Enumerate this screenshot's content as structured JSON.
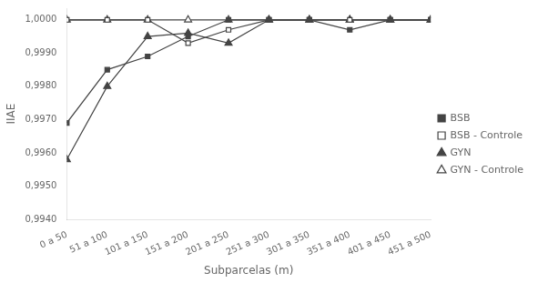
{
  "chart_data": {
    "type": "line",
    "categories": [
      "0 a 50",
      "51 a 100",
      "101 a 150",
      "151 a 200",
      "201 a 250",
      "251 a 300",
      "301 a 350",
      "351 a 400",
      "401 a 450",
      "451 a 500"
    ],
    "series": [
      {
        "name": "BSB",
        "color": "#444444",
        "marker": "square",
        "values": [
          0.9969,
          0.9985,
          0.9989,
          0.9995,
          1.0,
          1.0,
          1.0,
          0.9997,
          1.0,
          1.0
        ]
      },
      {
        "name": "BSB - Controle",
        "color": "#444444",
        "marker": "square-open",
        "values": [
          1.0,
          1.0,
          1.0,
          0.9993,
          0.9997,
          1.0,
          1.0,
          1.0,
          1.0,
          1.0
        ]
      },
      {
        "name": "GYN",
        "color": "#444444",
        "marker": "triangle",
        "values": [
          0.9958,
          0.998,
          0.9995,
          0.9996,
          0.9993,
          1.0,
          1.0,
          1.0,
          1.0,
          1.0
        ]
      },
      {
        "name": "GYN - Controle",
        "color": "#444444",
        "marker": "triangle-open",
        "values": [
          1.0,
          1.0,
          1.0,
          1.0,
          1.0,
          1.0,
          1.0,
          1.0,
          1.0,
          1.0
        ]
      }
    ],
    "xlabel": "Subparcelas (m)",
    "ylabel": "IIAE",
    "ylim": [
      0.994,
      1.00035
    ],
    "yticks": [
      {
        "value": 0.994,
        "label": "0,9940"
      },
      {
        "value": 0.995,
        "label": "0,9950"
      },
      {
        "value": 0.996,
        "label": "0,9960"
      },
      {
        "value": 0.997,
        "label": "0,9970"
      },
      {
        "value": 0.998,
        "label": "0,9980"
      },
      {
        "value": 0.999,
        "label": "0,9990"
      },
      {
        "value": 1.0,
        "label": "1,0000"
      }
    ],
    "grid": false,
    "legend": "right"
  }
}
